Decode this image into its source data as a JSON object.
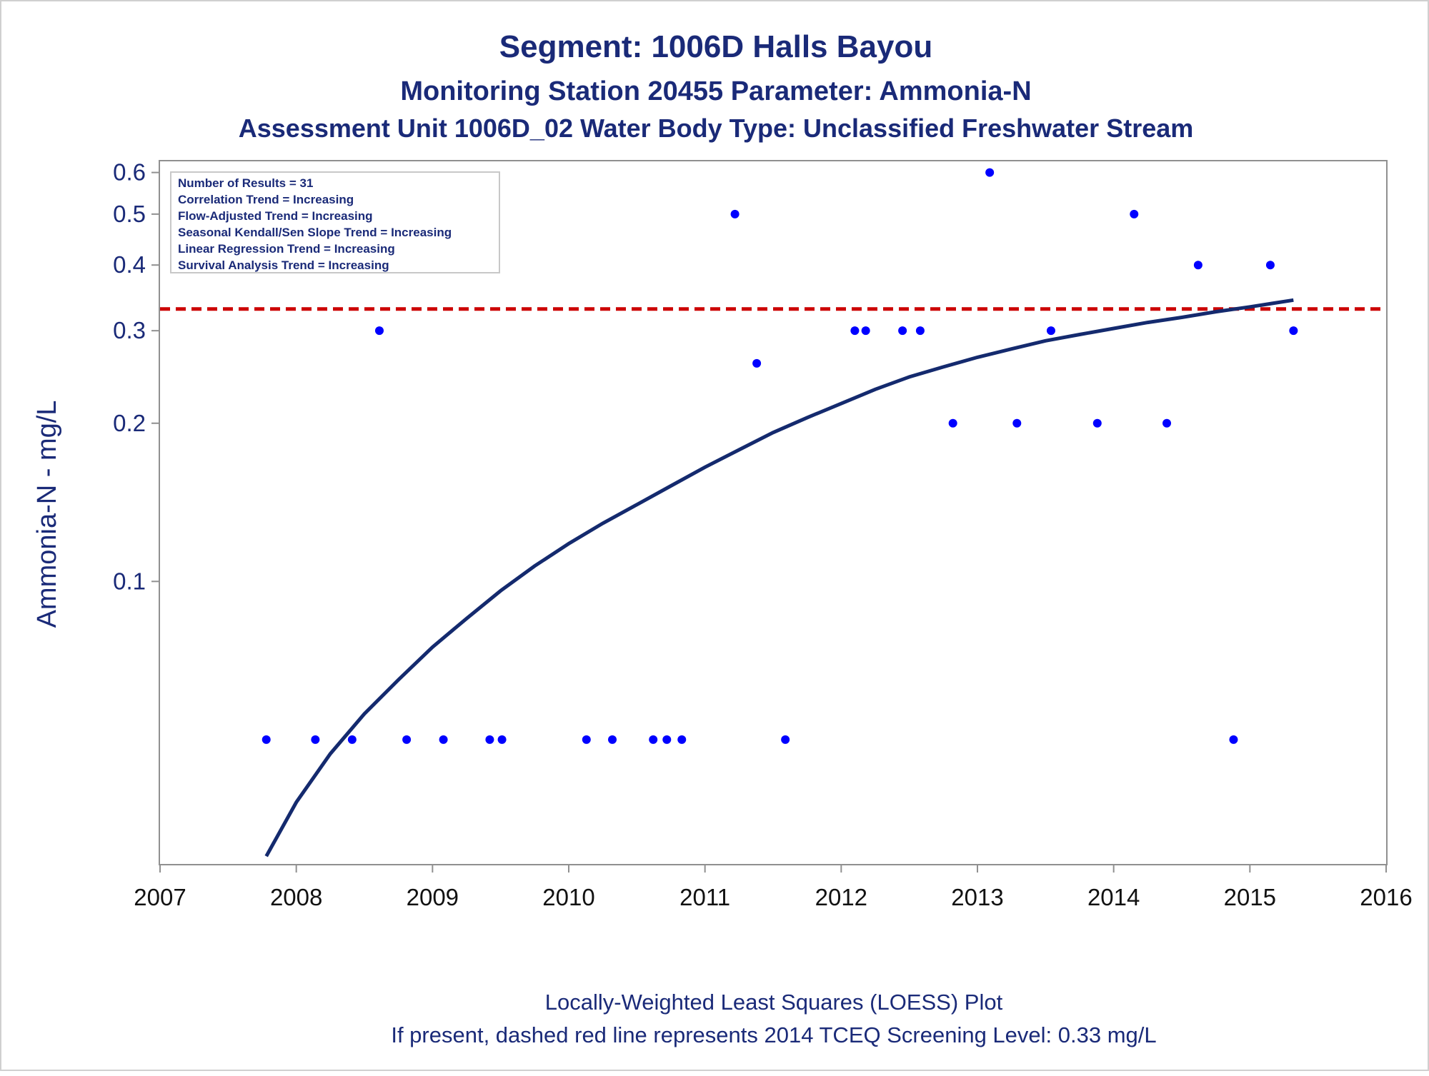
{
  "title": "Segment: 1006D  Halls Bayou",
  "subtitle": "Monitoring Station 20455 Parameter: Ammonia-N",
  "subtitle2": "Assessment Unit 1006D_02   Water Body Type: Unclassified Freshwater Stream",
  "footer": {
    "line1": "Locally-Weighted Least Squares (LOESS) Plot",
    "line2": "If present, dashed red line represents 2014 TCEQ Screening Level: 0.33 mg/L"
  },
  "stats_box": [
    "Number of Results = 31",
    "Correlation Trend = Increasing",
    "Flow-Adjusted Trend = Increasing",
    "Seasonal Kendall/Sen Slope Trend = Increasing",
    "Linear Regression Trend = Increasing",
    "Survival Analysis Trend = Increasing"
  ],
  "colors": {
    "title": "#1a2a78",
    "points": "#0000ff",
    "loess": "#142a6e",
    "screening": "#cc0000",
    "axis": "#909090"
  },
  "chart_data": {
    "type": "scatter",
    "xlabel": "",
    "ylabel": "Ammonia-N - mg/L",
    "yscale": "log",
    "xlim": [
      2007,
      2016
    ],
    "ylim": [
      0.029,
      0.63
    ],
    "x_ticks": [
      "2007",
      "2008",
      "2009",
      "2010",
      "2011",
      "2012",
      "2013",
      "2014",
      "2015",
      "2016"
    ],
    "y_ticks": [
      {
        "value": 0.1,
        "label": "0.1"
      },
      {
        "value": 0.2,
        "label": "0.2"
      },
      {
        "value": 0.3,
        "label": "0.3"
      },
      {
        "value": 0.4,
        "label": "0.4"
      },
      {
        "value": 0.5,
        "label": "0.5"
      },
      {
        "value": 0.6,
        "label": "0.6"
      }
    ],
    "grid": false,
    "legend_position": "top-left",
    "screening_level": 0.33,
    "points": [
      {
        "x": 2007.78,
        "y": 0.05
      },
      {
        "x": 2008.14,
        "y": 0.05
      },
      {
        "x": 2008.41,
        "y": 0.05
      },
      {
        "x": 2008.61,
        "y": 0.3
      },
      {
        "x": 2008.81,
        "y": 0.05
      },
      {
        "x": 2009.08,
        "y": 0.05
      },
      {
        "x": 2009.42,
        "y": 0.05
      },
      {
        "x": 2009.51,
        "y": 0.05
      },
      {
        "x": 2010.13,
        "y": 0.05
      },
      {
        "x": 2010.32,
        "y": 0.05
      },
      {
        "x": 2010.62,
        "y": 0.05
      },
      {
        "x": 2010.72,
        "y": 0.05
      },
      {
        "x": 2010.83,
        "y": 0.05
      },
      {
        "x": 2011.22,
        "y": 0.5
      },
      {
        "x": 2011.38,
        "y": 0.26
      },
      {
        "x": 2011.59,
        "y": 0.05
      },
      {
        "x": 2012.1,
        "y": 0.3
      },
      {
        "x": 2012.18,
        "y": 0.3
      },
      {
        "x": 2012.45,
        "y": 0.3
      },
      {
        "x": 2012.58,
        "y": 0.3
      },
      {
        "x": 2012.82,
        "y": 0.2
      },
      {
        "x": 2013.09,
        "y": 0.6
      },
      {
        "x": 2013.29,
        "y": 0.2
      },
      {
        "x": 2013.54,
        "y": 0.3
      },
      {
        "x": 2013.88,
        "y": 0.2
      },
      {
        "x": 2014.15,
        "y": 0.5
      },
      {
        "x": 2014.39,
        "y": 0.2
      },
      {
        "x": 2014.62,
        "y": 0.4
      },
      {
        "x": 2014.88,
        "y": 0.05
      },
      {
        "x": 2015.15,
        "y": 0.4
      },
      {
        "x": 2015.32,
        "y": 0.3
      }
    ],
    "loess": [
      {
        "x": 2007.78,
        "y": 0.03
      },
      {
        "x": 2008.0,
        "y": 0.038
      },
      {
        "x": 2008.25,
        "y": 0.047
      },
      {
        "x": 2008.5,
        "y": 0.056
      },
      {
        "x": 2008.75,
        "y": 0.065
      },
      {
        "x": 2009.0,
        "y": 0.075
      },
      {
        "x": 2009.25,
        "y": 0.085
      },
      {
        "x": 2009.5,
        "y": 0.096
      },
      {
        "x": 2009.75,
        "y": 0.107
      },
      {
        "x": 2010.0,
        "y": 0.118
      },
      {
        "x": 2010.25,
        "y": 0.129
      },
      {
        "x": 2010.5,
        "y": 0.14
      },
      {
        "x": 2010.75,
        "y": 0.152
      },
      {
        "x": 2011.0,
        "y": 0.165
      },
      {
        "x": 2011.25,
        "y": 0.178
      },
      {
        "x": 2011.5,
        "y": 0.192
      },
      {
        "x": 2011.75,
        "y": 0.205
      },
      {
        "x": 2012.0,
        "y": 0.218
      },
      {
        "x": 2012.25,
        "y": 0.232
      },
      {
        "x": 2012.5,
        "y": 0.245
      },
      {
        "x": 2012.75,
        "y": 0.256
      },
      {
        "x": 2013.0,
        "y": 0.267
      },
      {
        "x": 2013.25,
        "y": 0.277
      },
      {
        "x": 2013.5,
        "y": 0.287
      },
      {
        "x": 2013.75,
        "y": 0.295
      },
      {
        "x": 2014.0,
        "y": 0.303
      },
      {
        "x": 2014.25,
        "y": 0.311
      },
      {
        "x": 2014.5,
        "y": 0.318
      },
      {
        "x": 2014.75,
        "y": 0.326
      },
      {
        "x": 2015.0,
        "y": 0.333
      },
      {
        "x": 2015.32,
        "y": 0.343
      }
    ]
  }
}
